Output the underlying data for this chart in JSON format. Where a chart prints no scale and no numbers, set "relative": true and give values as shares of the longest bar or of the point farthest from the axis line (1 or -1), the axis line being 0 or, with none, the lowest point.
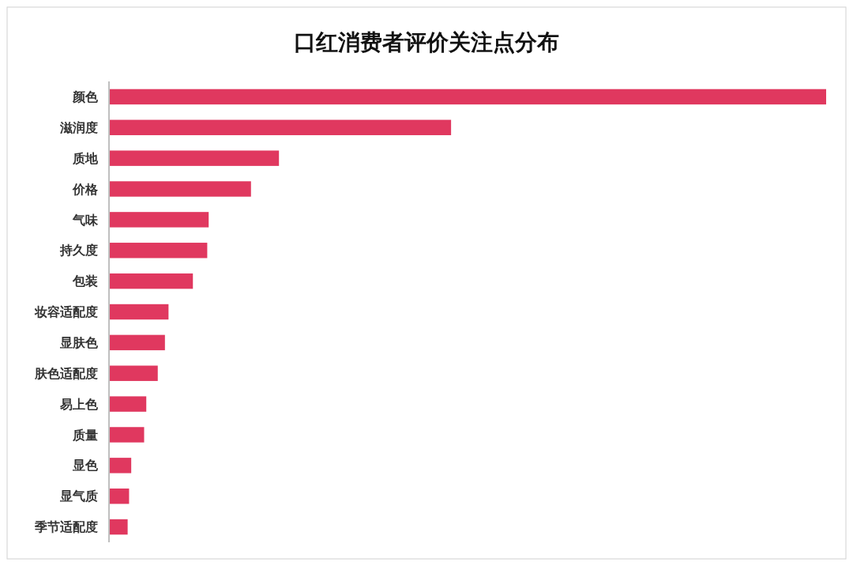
{
  "chart_data": {
    "type": "bar",
    "title": "口红消费者评价关注点分布",
    "orientation": "horizontal",
    "relative": true,
    "categories": [
      "颜色",
      "滋润度",
      "质地",
      "价格",
      "气味",
      "持久度",
      "包装",
      "妆容适配度",
      "显肤色",
      "肤色适配度",
      "易上色",
      "质量",
      "显色",
      "显气质",
      "季节适配度"
    ],
    "values": [
      1,
      0.477,
      0.237,
      0.198,
      0.139,
      0.137,
      0.117,
      0.083,
      0.078,
      0.068,
      0.052,
      0.049,
      0.031,
      0.028,
      0.026
    ],
    "color": "#e0385f"
  }
}
